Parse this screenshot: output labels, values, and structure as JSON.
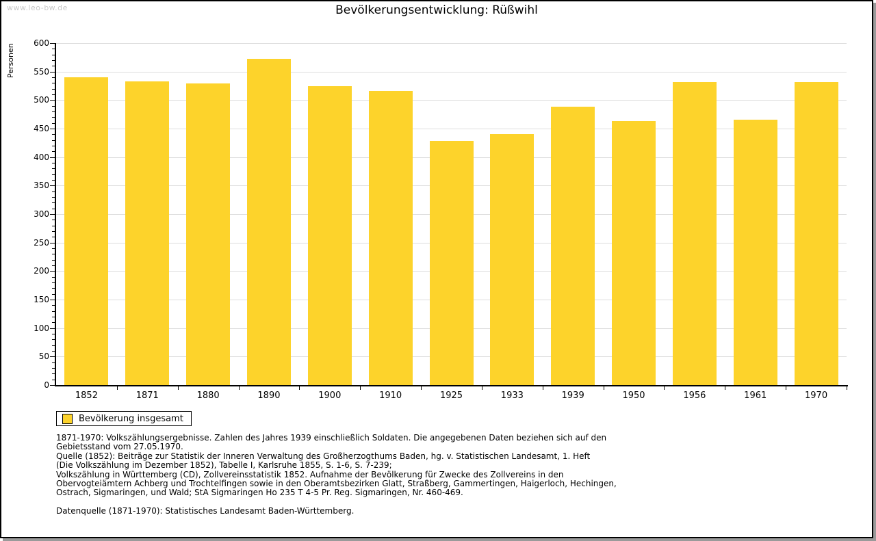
{
  "page": {
    "watermark": "www.leo-bw.de",
    "title": "Bevölkerungsentwicklung: Rüßwihl"
  },
  "chart_data": {
    "type": "bar",
    "title": "Bevölkerungsentwicklung: Rüßwihl",
    "ylabel": "Personen",
    "xlabel": "",
    "ylim": [
      0,
      600
    ],
    "y_major_step": 50,
    "y_minor_step": 10,
    "grid": true,
    "categories": [
      "1852",
      "1871",
      "1880",
      "1890",
      "1900",
      "1910",
      "1925",
      "1933",
      "1939",
      "1950",
      "1956",
      "1961",
      "1970"
    ],
    "values": [
      540,
      533,
      529,
      572,
      525,
      516,
      429,
      440,
      489,
      463,
      532,
      466,
      532
    ],
    "series_name": "Bevölkerung insgesamt",
    "bar_color": "#FDD32B",
    "gridline_color": "#dcdcdc",
    "legend": {
      "label": "Bevölkerung insgesamt",
      "position": "bottom-left"
    }
  },
  "notes": {
    "lines": [
      "1871-1970: Volkszählungsergebnisse. Zahlen des Jahres 1939 einschließlich Soldaten. Die angegebenen Daten beziehen sich auf den",
      "Gebietsstand vom 27.05.1970.",
      "Quelle (1852): Beiträge zur Statistik der Inneren Verwaltung des Großherzogthums Baden, hg. v. Statistischen Landesamt, 1. Heft",
      "(Die Volkszählung im Dezember 1852), Tabelle I, Karlsruhe 1855, S. 1-6, S. 7-239;",
      "Volkszählung in Württemberg (CD), Zollvereinsstatistik 1852. Aufnahme der Bevölkerung für Zwecke des Zollvereins in den",
      "Obervogteiämtern Achberg und Trochtelfingen sowie in den Oberamtsbezirken Glatt, Straßberg, Gammertingen, Haigerloch, Hechingen,",
      "Ostrach, Sigmaringen, und Wald; StA Sigmaringen Ho 235 T 4-5 Pr. Reg. Sigmaringen, Nr. 460-469."
    ],
    "datasource": "Datenquelle (1871-1970): Statistisches Landesamt Baden-Württemberg."
  }
}
